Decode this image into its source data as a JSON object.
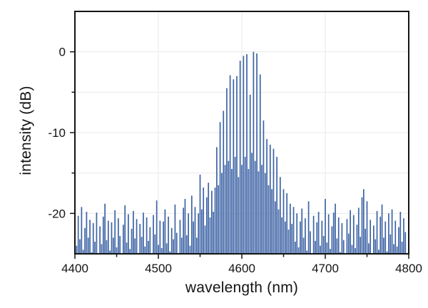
{
  "chart_data": {
    "type": "bar",
    "title": "",
    "xlabel": "wavelength (nm)",
    "ylabel": "intensity (dB)",
    "xlim": [
      4400,
      4800
    ],
    "ylim": [
      -25,
      5
    ],
    "x_major_ticks": [
      4400,
      4500,
      4600,
      4700,
      4800
    ],
    "x_minor_ticks": [
      4450,
      4550,
      4650,
      4750
    ],
    "y_major_ticks": [
      0,
      -10,
      -20
    ],
    "y_minor_ticks": [
      -5,
      -15
    ],
    "grid_x": [
      4500,
      4600,
      4700
    ],
    "grid_y": [
      0,
      -5,
      -10,
      -15,
      -20
    ],
    "legend": "none",
    "grid": "on",
    "series_color": "#3d63a5",
    "series_edge_color": "#2e4e85",
    "grid_color": "#e9e9e9",
    "axis_color": "#141414",
    "peak_center_nm": 4610,
    "peak_max_db": 0,
    "noise_floor_db": -22,
    "x_start": 4400,
    "x_step": 2,
    "values": [
      -21.5,
      -24.0,
      -20.3,
      -23.2,
      -19.2,
      -24.5,
      -21.8,
      -19.8,
      -23.0,
      -20.8,
      -24.8,
      -21.2,
      -23.5,
      -19.9,
      -25.0,
      -21.6,
      -23.8,
      -20.4,
      -18.8,
      -23.3,
      -20.9,
      -24.6,
      -21.1,
      -23.0,
      -19.6,
      -24.2,
      -20.6,
      -22.8,
      -25.0,
      -21.4,
      -19.0,
      -23.6,
      -20.1,
      -24.4,
      -21.9,
      -19.7,
      -23.1,
      -20.7,
      -24.9,
      -21.3,
      -22.9,
      -19.9,
      -24.1,
      -20.5,
      -23.4,
      -21.7,
      -25.0,
      -20.2,
      -22.6,
      -18.4,
      -23.9,
      -20.9,
      -24.3,
      -21.0,
      -19.5,
      -23.7,
      -20.4,
      -24.7,
      -21.8,
      -23.2,
      -18.9,
      -22.4,
      -25.0,
      -20.8,
      -23.0,
      -19.3,
      -18.2,
      -22.7,
      -20.0,
      -24.0,
      -17.8,
      -21.0,
      -19.2,
      -23.0,
      -20.0,
      -15.2,
      -19.5,
      -16.8,
      -21.5,
      -18.0,
      -16.2,
      -20.5,
      -17.2,
      -19.8,
      -16.8,
      -11.8,
      -16.5,
      -8.7,
      -15.0,
      -7.3,
      -14.0,
      -4.5,
      -13.5,
      -2.9,
      -14.5,
      -3.4,
      -13.0,
      -3.0,
      -15.5,
      -1.1,
      -14.0,
      -0.5,
      -13.0,
      -0.3,
      -14.5,
      -5.3,
      -12.5,
      0.0,
      -13.5,
      -0.2,
      -14.8,
      -2.8,
      -14.0,
      -8.5,
      -15.0,
      -10.8,
      -16.5,
      -11.5,
      -17.0,
      -12.0,
      -18.5,
      -13.0,
      -19.5,
      -15.5,
      -20.5,
      -17.0,
      -21.0,
      -17.5,
      -22.0,
      -18.8,
      -21.3,
      -19.2,
      -23.5,
      -20.0,
      -24.2,
      -21.0,
      -19.4,
      -23.0,
      -20.6,
      -24.6,
      -18.5,
      -22.2,
      -25.0,
      -20.3,
      -23.4,
      -21.1,
      -19.8,
      -24.0,
      -20.9,
      -22.8,
      -18.2,
      -23.6,
      -20.1,
      -24.4,
      -21.6,
      -19.9,
      -18.8,
      -23.1,
      -20.5,
      -24.8,
      -21.2,
      -23.3,
      -25.0,
      -20.7,
      -22.5,
      -19.6,
      -23.9,
      -20.2,
      -24.3,
      -21.4,
      -19.3,
      -22.9,
      -18.0,
      -17.0,
      -21.9,
      -18.5,
      -23.7,
      -20.8,
      -25.0,
      -21.5,
      -23.2,
      -19.7,
      -24.5,
      -20.4,
      -18.9,
      -23.0,
      -21.0,
      -24.7,
      -20.0,
      -22.6,
      -19.5,
      -23.8,
      -20.9,
      -24.1,
      -21.7,
      -19.8,
      -23.5,
      -20.6,
      -22.3,
      -24.9,
      -21.0
    ]
  }
}
